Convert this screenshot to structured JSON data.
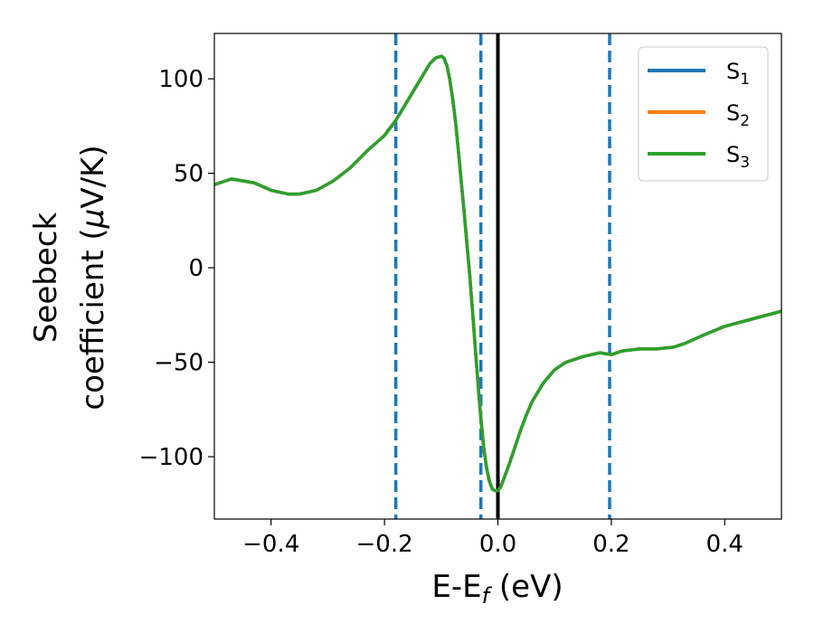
{
  "chart_data": {
    "type": "line",
    "xlabel": {
      "main": "E-E",
      "sub": "f",
      "unit": " (eV)"
    },
    "ylabel": {
      "line1": "Seebeck",
      "line2_text": "coefficient  (",
      "line2_mu": "μ",
      "line2_unit": "V/K)"
    },
    "xlim": [
      -0.5,
      0.5
    ],
    "ylim": [
      -133,
      124
    ],
    "x_ticks": [
      {
        "value": -0.4,
        "label": "−0.4"
      },
      {
        "value": -0.2,
        "label": "−0.2"
      },
      {
        "value": 0.0,
        "label": "0.0"
      },
      {
        "value": 0.2,
        "label": "0.2"
      },
      {
        "value": 0.4,
        "label": "0.4"
      }
    ],
    "y_ticks": [
      {
        "value": 100,
        "label": "100"
      },
      {
        "value": 50,
        "label": "50"
      },
      {
        "value": 0,
        "label": "0"
      },
      {
        "value": -50,
        "label": "−50"
      },
      {
        "value": -100,
        "label": "−100"
      }
    ],
    "grid": false,
    "legend_position": "top-right",
    "vertical_lines": [
      {
        "x": -0.18,
        "style": "dashed",
        "color": "#1f77b4"
      },
      {
        "x": -0.03,
        "style": "dashed",
        "color": "#1f77b4"
      },
      {
        "x": 0.0,
        "style": "solid",
        "color": "#000000"
      },
      {
        "x": 0.197,
        "style": "dashed",
        "color": "#1f77b4"
      }
    ],
    "series": [
      {
        "name": "S",
        "sub": "1",
        "color": "#1f77b4",
        "x": [
          -0.5,
          -0.47,
          -0.43,
          -0.4,
          -0.37,
          -0.35,
          -0.32,
          -0.29,
          -0.26,
          -0.23,
          -0.2,
          -0.18,
          -0.16,
          -0.14,
          -0.12,
          -0.11,
          -0.1,
          -0.095,
          -0.09,
          -0.085,
          -0.08,
          -0.075,
          -0.07,
          -0.065,
          -0.06,
          -0.055,
          -0.05,
          -0.045,
          -0.04,
          -0.035,
          -0.03,
          -0.025,
          -0.02,
          -0.015,
          -0.01,
          -0.005,
          0.0,
          0.005,
          0.01,
          0.02,
          0.03,
          0.04,
          0.05,
          0.06,
          0.08,
          0.1,
          0.12,
          0.15,
          0.18,
          0.2,
          0.22,
          0.25,
          0.28,
          0.31,
          0.33,
          0.36,
          0.4,
          0.45,
          0.5
        ],
        "y": [
          44,
          47,
          45,
          41,
          39,
          39,
          41,
          46,
          53,
          62,
          70,
          78,
          88,
          98,
          108,
          111,
          112,
          111,
          107,
          100,
          90,
          78,
          63,
          47,
          31,
          14,
          -3,
          -22,
          -42,
          -62,
          -80,
          -95,
          -106,
          -113,
          -117,
          -118,
          -118,
          -116,
          -112,
          -104,
          -95,
          -86,
          -78,
          -71,
          -61,
          -54,
          -50,
          -47,
          -45,
          -46,
          -44,
          -43,
          -43,
          -42,
          -40,
          -36,
          -31,
          -27,
          -23
        ]
      },
      {
        "name": "S",
        "sub": "2",
        "color": "#ff7f0e",
        "x": [
          -0.5,
          -0.47,
          -0.43,
          -0.4,
          -0.37,
          -0.35,
          -0.32,
          -0.29,
          -0.26,
          -0.23,
          -0.2,
          -0.18,
          -0.16,
          -0.14,
          -0.12,
          -0.11,
          -0.1,
          -0.095,
          -0.09,
          -0.085,
          -0.08,
          -0.075,
          -0.07,
          -0.065,
          -0.06,
          -0.055,
          -0.05,
          -0.045,
          -0.04,
          -0.035,
          -0.03,
          -0.025,
          -0.02,
          -0.015,
          -0.01,
          -0.005,
          0.0,
          0.005,
          0.01,
          0.02,
          0.03,
          0.04,
          0.05,
          0.06,
          0.08,
          0.1,
          0.12,
          0.15,
          0.18,
          0.2,
          0.22,
          0.25,
          0.28,
          0.31,
          0.33,
          0.36,
          0.4,
          0.45,
          0.5
        ],
        "y": [
          44,
          47,
          45,
          41,
          39,
          39,
          41,
          46,
          53,
          62,
          70,
          78,
          88,
          98,
          108,
          111,
          112,
          111,
          107,
          100,
          90,
          78,
          63,
          47,
          31,
          14,
          -3,
          -22,
          -42,
          -62,
          -80,
          -95,
          -106,
          -113,
          -117,
          -118,
          -118,
          -116,
          -112,
          -104,
          -95,
          -86,
          -78,
          -71,
          -61,
          -54,
          -50,
          -47,
          -45,
          -46,
          -44,
          -43,
          -43,
          -42,
          -40,
          -36,
          -31,
          -27,
          -23
        ]
      },
      {
        "name": "S",
        "sub": "3",
        "color": "#2ca02c",
        "x": [
          -0.5,
          -0.47,
          -0.43,
          -0.4,
          -0.37,
          -0.35,
          -0.32,
          -0.29,
          -0.26,
          -0.23,
          -0.2,
          -0.18,
          -0.16,
          -0.14,
          -0.12,
          -0.11,
          -0.1,
          -0.095,
          -0.09,
          -0.085,
          -0.08,
          -0.075,
          -0.07,
          -0.065,
          -0.06,
          -0.055,
          -0.05,
          -0.045,
          -0.04,
          -0.035,
          -0.03,
          -0.025,
          -0.02,
          -0.015,
          -0.01,
          -0.005,
          0.0,
          0.005,
          0.01,
          0.02,
          0.03,
          0.04,
          0.05,
          0.06,
          0.08,
          0.1,
          0.12,
          0.15,
          0.18,
          0.2,
          0.22,
          0.25,
          0.28,
          0.31,
          0.33,
          0.36,
          0.4,
          0.45,
          0.5
        ],
        "y": [
          44,
          47,
          45,
          41,
          39,
          39,
          41,
          46,
          53,
          62,
          70,
          78,
          88,
          98,
          108,
          111,
          112,
          111,
          107,
          100,
          90,
          78,
          63,
          47,
          31,
          14,
          -3,
          -22,
          -42,
          -62,
          -80,
          -95,
          -106,
          -113,
          -117,
          -118,
          -118,
          -116,
          -112,
          -104,
          -95,
          -86,
          -78,
          -71,
          -61,
          -54,
          -50,
          -47,
          -45,
          -46,
          -44,
          -43,
          -43,
          -42,
          -40,
          -36,
          -31,
          -27,
          -23
        ]
      }
    ]
  }
}
